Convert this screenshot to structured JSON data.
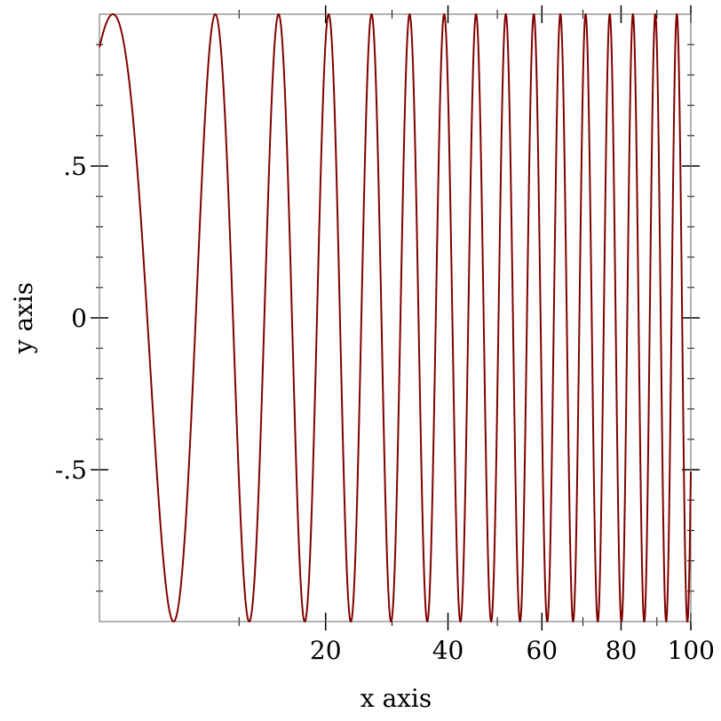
{
  "chart_data": {
    "type": "line",
    "function": "sin(x)",
    "xlabel": "x axis",
    "ylabel": "y axis",
    "x_scale": "sqrt",
    "xlim": [
      1.1,
      100
    ],
    "ylim": [
      -1,
      1
    ],
    "x_ticks": [
      {
        "value": 20,
        "label": "20"
      },
      {
        "value": 40,
        "label": "40"
      },
      {
        "value": 60,
        "label": "60"
      },
      {
        "value": 80,
        "label": "80"
      },
      {
        "value": 100,
        "label": "100"
      }
    ],
    "y_ticks": [
      {
        "value": -0.5,
        "label": "-.5"
      },
      {
        "value": 0,
        "label": "0"
      },
      {
        "value": 0.5,
        "label": ".5"
      }
    ],
    "grid": false,
    "legend": "none",
    "series": [
      {
        "color": "#800000"
      }
    ]
  }
}
